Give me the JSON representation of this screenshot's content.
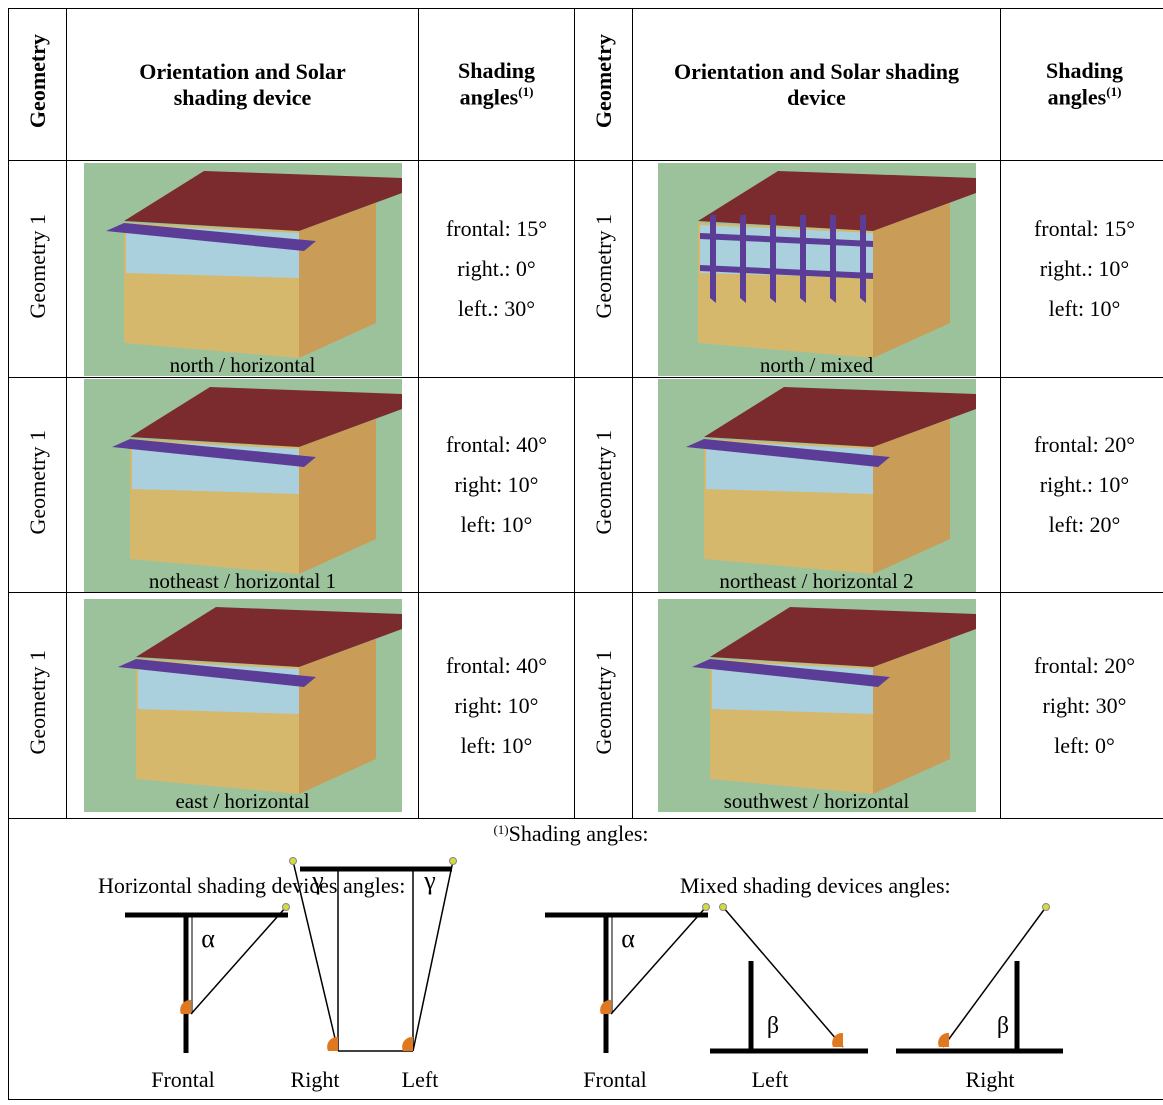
{
  "table": {
    "header": [
      {
        "text": "Geometry"
      },
      {
        "text": "Orientation and Solar shading device"
      },
      {
        "text": "Shading angles",
        "note": "(1)"
      },
      {
        "text": "Geometry"
      },
      {
        "text": "Orientation and Solar shading device"
      },
      {
        "text": "Shading angles",
        "note": "(1)"
      }
    ],
    "rows": [
      [
        {
          "geometry": "Geometry 1",
          "caption": "north / horizontal",
          "angles": [
            "frontal: 15°",
            "right.: 0°",
            "left.: 30°"
          ]
        },
        {
          "geometry": "Geometry 1",
          "caption": "north / mixed",
          "angles": [
            "frontal: 15°",
            "right.: 10°",
            "left: 10°"
          ]
        }
      ],
      [
        {
          "geometry": "Geometry 1",
          "caption": "notheast / horizontal 1",
          "angles": [
            "frontal: 40°",
            "right: 10°",
            "left: 10°"
          ]
        },
        {
          "geometry": "Geometry 1",
          "caption": "northeast / horizontal 2",
          "angles": [
            "frontal: 20°",
            "right.: 10°",
            "left: 20°"
          ]
        }
      ],
      [
        {
          "geometry": "Geometry 1",
          "caption": "east / horizontal",
          "angles": [
            "frontal: 40°",
            "right: 10°",
            "left: 10°"
          ]
        },
        {
          "geometry": "Geometry 1",
          "caption": "southwest / horizontal",
          "angles": [
            "frontal: 20°",
            "right: 30°",
            "left: 0°"
          ]
        }
      ]
    ]
  },
  "footnote": {
    "marker": "(1)",
    "title": "Shading angles:",
    "horizontal": {
      "title": "Horizontal shading devices angles:",
      "labels": [
        "Frontal",
        "Right",
        "Left"
      ],
      "symbols": [
        "α",
        "γ",
        "γ"
      ]
    },
    "mixed": {
      "title": "Mixed shading devices angles:",
      "labels": [
        "Frontal",
        "Left",
        "Right"
      ],
      "symbols": [
        "α",
        "β",
        "β"
      ]
    }
  }
}
